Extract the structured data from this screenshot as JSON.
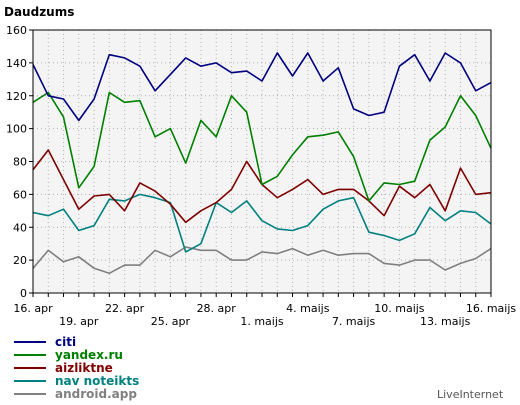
{
  "chart_data": {
    "type": "line",
    "ylabel": "Daudzums",
    "ylim": [
      0,
      160
    ],
    "yticks": [
      0,
      20,
      40,
      60,
      80,
      100,
      120,
      140,
      160
    ],
    "grid": true,
    "legend_position": "bottom-left",
    "x": [
      "16. apr",
      "",
      "",
      "19. apr",
      "",
      "",
      "22. apr",
      "",
      "",
      "25. apr",
      "",
      "",
      "28. apr",
      "",
      "",
      "1. maijs",
      "",
      "",
      "4. maijs",
      "",
      "",
      "7. maijs",
      "",
      "",
      "10. maijs",
      "",
      "",
      "13. maijs",
      "",
      "",
      "16. maijs"
    ],
    "xtick_labels": [
      {
        "label": "16. apr",
        "index": 0,
        "row": 0
      },
      {
        "label": "19. apr",
        "index": 3,
        "row": 1
      },
      {
        "label": "22. apr",
        "index": 6,
        "row": 0
      },
      {
        "label": "25. apr",
        "index": 9,
        "row": 1
      },
      {
        "label": "28. apr",
        "index": 12,
        "row": 0
      },
      {
        "label": "1. maijs",
        "index": 15,
        "row": 1
      },
      {
        "label": "4. maijs",
        "index": 18,
        "row": 0
      },
      {
        "label": "7. maijs",
        "index": 21,
        "row": 1
      },
      {
        "label": "10. maijs",
        "index": 24,
        "row": 0
      },
      {
        "label": "13. maijs",
        "index": 27,
        "row": 1
      },
      {
        "label": "16. maijs",
        "index": 30,
        "row": 0
      }
    ],
    "series": [
      {
        "name": "citi",
        "color": "#000080",
        "values": [
          139,
          120,
          118,
          105,
          118,
          145,
          143,
          138,
          123,
          133,
          143,
          138,
          140,
          134,
          135,
          129,
          146,
          132,
          146,
          129,
          137,
          112,
          108,
          110,
          138,
          145,
          129,
          146,
          140,
          123,
          128
        ]
      },
      {
        "name": "yandex.ru",
        "color": "#008000",
        "values": [
          116,
          122,
          107,
          64,
          77,
          122,
          116,
          117,
          95,
          100,
          79,
          105,
          95,
          120,
          110,
          66,
          71,
          84,
          95,
          96,
          98,
          83,
          56,
          67,
          66,
          68,
          93,
          101,
          120,
          108,
          88
        ]
      },
      {
        "name": "aizliktne",
        "color": "#800000",
        "values": [
          75,
          87,
          69,
          51,
          59,
          60,
          50,
          67,
          62,
          54,
          43,
          50,
          55,
          63,
          80,
          66,
          58,
          63,
          69,
          60,
          63,
          63,
          56,
          47,
          65,
          58,
          66,
          50,
          76,
          60,
          61
        ]
      },
      {
        "name": "nav noteikts",
        "color": "#008080",
        "values": [
          49,
          47,
          51,
          38,
          41,
          57,
          56,
          60,
          58,
          55,
          25,
          30,
          55,
          49,
          56,
          44,
          39,
          38,
          41,
          51,
          56,
          58,
          37,
          35,
          32,
          36,
          52,
          44,
          50,
          49,
          42
        ]
      },
      {
        "name": "android.app",
        "color": "#808080",
        "values": [
          15,
          26,
          19,
          22,
          15,
          12,
          17,
          17,
          26,
          22,
          28,
          26,
          26,
          20,
          20,
          25,
          24,
          27,
          23,
          26,
          23,
          24,
          24,
          18,
          17,
          20,
          20,
          14,
          18,
          21,
          27
        ]
      }
    ]
  },
  "branding": {
    "text": "LiveInternet"
  }
}
